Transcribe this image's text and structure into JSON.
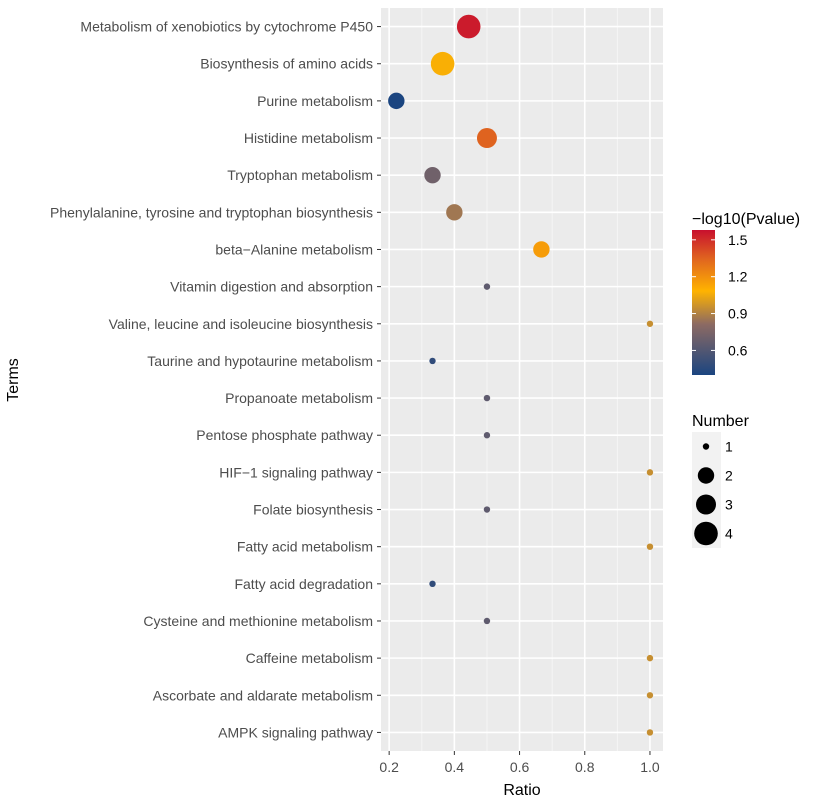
{
  "chart_data": {
    "type": "scatter",
    "xlabel": "Ratio",
    "ylabel": "Terms",
    "xlim": [
      0.175,
      1.04
    ],
    "xticks": [
      {
        "value": 0.2,
        "label": "0.2"
      },
      {
        "value": 0.4,
        "label": "0.4"
      },
      {
        "value": 0.6,
        "label": "0.6"
      },
      {
        "value": 0.8,
        "label": "0.8"
      },
      {
        "value": 1.0,
        "label": "1.0"
      }
    ],
    "grid": true,
    "points": [
      {
        "term": "Metabolism of xenobiotics by cytochrome P450",
        "ratio": 0.444,
        "number": 4,
        "neglog10p": 1.55
      },
      {
        "term": "Biosynthesis of amino acids",
        "ratio": 0.364,
        "number": 4,
        "neglog10p": 1.07
      },
      {
        "term": "Purine metabolism",
        "ratio": 0.222,
        "number": 2,
        "neglog10p": 0.4
      },
      {
        "term": "Histidine metabolism",
        "ratio": 0.5,
        "number": 3,
        "neglog10p": 1.35
      },
      {
        "term": "Tryptophan metabolism",
        "ratio": 0.333,
        "number": 2,
        "neglog10p": 0.71
      },
      {
        "term": "Phenylalanine, tyrosine and tryptophan biosynthesis",
        "ratio": 0.4,
        "number": 2,
        "neglog10p": 0.86
      },
      {
        "term": "beta−Alanine metabolism",
        "ratio": 0.667,
        "number": 2,
        "neglog10p": 1.16
      },
      {
        "term": "Vitamin digestion and absorption",
        "ratio": 0.5,
        "number": 1,
        "neglog10p": 0.65
      },
      {
        "term": "Valine, leucine and isoleucine biosynthesis",
        "ratio": 1.0,
        "number": 1,
        "neglog10p": 0.95
      },
      {
        "term": "Taurine and hypotaurine metabolism",
        "ratio": 0.333,
        "number": 1,
        "neglog10p": 0.48
      },
      {
        "term": "Propanoate metabolism",
        "ratio": 0.5,
        "number": 1,
        "neglog10p": 0.65
      },
      {
        "term": "Pentose phosphate pathway",
        "ratio": 0.5,
        "number": 1,
        "neglog10p": 0.65
      },
      {
        "term": "HIF−1 signaling pathway",
        "ratio": 1.0,
        "number": 1,
        "neglog10p": 0.95
      },
      {
        "term": "Folate biosynthesis",
        "ratio": 0.5,
        "number": 1,
        "neglog10p": 0.65
      },
      {
        "term": "Fatty acid metabolism",
        "ratio": 1.0,
        "number": 1,
        "neglog10p": 0.95
      },
      {
        "term": "Fatty acid degradation",
        "ratio": 0.333,
        "number": 1,
        "neglog10p": 0.48
      },
      {
        "term": "Cysteine and methionine metabolism",
        "ratio": 0.5,
        "number": 1,
        "neglog10p": 0.65
      },
      {
        "term": "Caffeine metabolism",
        "ratio": 1.0,
        "number": 1,
        "neglog10p": 0.95
      },
      {
        "term": "Ascorbate and aldarate metabolism",
        "ratio": 1.0,
        "number": 1,
        "neglog10p": 0.95
      },
      {
        "term": "AMPK signaling pathway",
        "ratio": 1.0,
        "number": 1,
        "neglog10p": 0.95
      }
    ],
    "color_legend": {
      "title": "−log10(Pvalue)",
      "range": [
        0.4,
        1.58
      ],
      "ticks": [
        {
          "value": 0.6,
          "label": "0.6"
        },
        {
          "value": 0.9,
          "label": "0.9"
        },
        {
          "value": 1.2,
          "label": "1.2"
        },
        {
          "value": 1.5,
          "label": "1.5"
        }
      ],
      "colors": [
        {
          "stop": 0.0,
          "color": "#1b4580"
        },
        {
          "stop": 0.35,
          "color": "#8c6a63"
        },
        {
          "stop": 0.58,
          "color": "#ffb300"
        },
        {
          "stop": 0.8,
          "color": "#e0651f"
        },
        {
          "stop": 1.0,
          "color": "#c8102e"
        }
      ]
    },
    "size_legend": {
      "title": "Number",
      "items": [
        {
          "value": 1,
          "label": "1"
        },
        {
          "value": 2,
          "label": "2"
        },
        {
          "value": 3,
          "label": "3"
        },
        {
          "value": 4,
          "label": "4"
        }
      ]
    },
    "legend_position": "right"
  }
}
